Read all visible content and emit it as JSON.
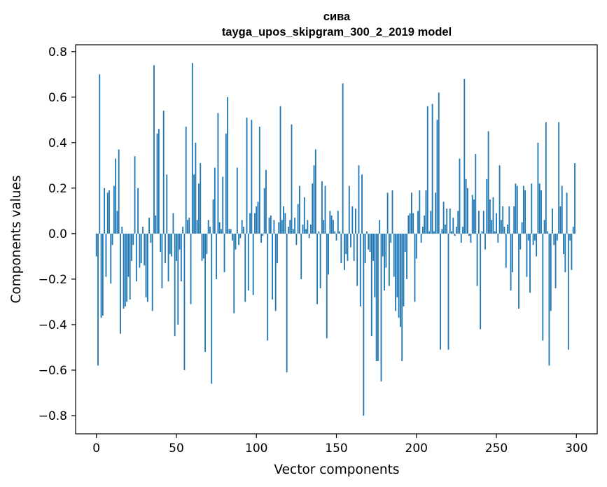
{
  "chart_data": {
    "type": "bar",
    "title": "сива",
    "subtitle": "tayga_upos_skipgram_300_2_2019 model",
    "xlabel": "Vector components",
    "ylabel": "Components values",
    "xlim": [
      -13,
      313
    ],
    "ylim": [
      -0.88,
      0.83
    ],
    "xticks": [
      0,
      50,
      100,
      150,
      200,
      250,
      300
    ],
    "yticks": [
      0.8,
      0.6,
      0.4,
      0.2,
      0.0,
      -0.2,
      -0.4,
      -0.6,
      -0.8
    ],
    "ytick_labels": [
      "0.8",
      "0.6",
      "0.4",
      "0.2",
      "0.0",
      "−0.2",
      "−0.4",
      "−0.6",
      "−0.8"
    ],
    "bar_color": "#1f77b4",
    "grid": false,
    "x": "component index 0..299",
    "values": [
      -0.1,
      -0.58,
      0.7,
      -0.37,
      -0.36,
      0.2,
      -0.19,
      0.18,
      0.19,
      -0.22,
      -0.05,
      0.21,
      0.33,
      0.1,
      0.37,
      -0.44,
      0.03,
      -0.33,
      -0.32,
      -0.3,
      -0.19,
      -0.29,
      -0.12,
      -0.05,
      0.34,
      -0.21,
      0.2,
      -0.15,
      -0.13,
      0.03,
      -0.14,
      -0.28,
      -0.3,
      0.07,
      -0.04,
      -0.34,
      0.74,
      0.08,
      0.44,
      0.46,
      -0.08,
      -0.24,
      0.54,
      -0.13,
      0.26,
      -0.21,
      -0.09,
      -0.1,
      0.09,
      -0.45,
      -0.12,
      -0.4,
      -0.07,
      -0.21,
      0.03,
      -0.6,
      0.47,
      0.06,
      0.07,
      -0.31,
      0.75,
      0.26,
      0.4,
      0.06,
      0.22,
      0.31,
      -0.12,
      -0.11,
      -0.52,
      -0.09,
      0.06,
      0.03,
      -0.66,
      0.15,
      0.29,
      -0.2,
      0.53,
      0.05,
      0.02,
      0.25,
      -0.17,
      0.44,
      0.6,
      0.02,
      0.02,
      -0.03,
      -0.35,
      -0.07,
      0.29,
      -0.05,
      -0.02,
      0.06,
      0.03,
      -0.3,
      0.51,
      -0.25,
      0.09,
      0.5,
      -0.27,
      0.09,
      0.12,
      0.14,
      0.47,
      -0.04,
      -0.01,
      0.2,
      0.28,
      -0.47,
      0.07,
      0.08,
      -0.29,
      0.06,
      -0.34,
      -0.13,
      0.05,
      0.56,
      0.06,
      0.12,
      0.09,
      -0.61,
      0.03,
      0.06,
      0.48,
      0.02,
      0.07,
      -0.05,
      0.13,
      0.21,
      -0.2,
      0.04,
      0.16,
      0.02,
      0.06,
      -0.02,
      0.04,
      0.22,
      0.3,
      0.37,
      -0.31,
      0.01,
      -0.24,
      0.23,
      0.06,
      0.21,
      -0.46,
      -0.18,
      0.1,
      0.08,
      0.06,
      0.01,
      -0.03,
      0.1,
      0.01,
      -0.13,
      0.66,
      -0.16,
      -0.09,
      -0.12,
      0.21,
      -0.06,
      0.12,
      -0.12,
      0.11,
      -0.23,
      0.3,
      -0.32,
      0.26,
      -0.8,
      -0.13,
      0.01,
      -0.07,
      -0.08,
      -0.45,
      -0.12,
      -0.28,
      -0.56,
      -0.56,
      0.06,
      -0.65,
      -0.1,
      -0.25,
      -0.15,
      0.18,
      -0.23,
      -0.04,
      0.19,
      -0.19,
      -0.34,
      -0.28,
      -0.37,
      -0.41,
      -0.56,
      -0.32,
      -0.08,
      -0.2,
      0.08,
      0.09,
      0.18,
      0.09,
      -0.3,
      -0.11,
      0.1,
      0.19,
      -0.04,
      0.03,
      0.08,
      0.19,
      0.56,
      0.01,
      0.1,
      0.57,
      0.01,
      0.18,
      0.5,
      0.62,
      -0.51,
      0.02,
      0.14,
      0.04,
      0.11,
      -0.51,
      0.11,
      0.01,
      0.07,
      -0.01,
      0.03,
      0.1,
      0.33,
      -0.04,
      0.03,
      0.68,
      0.24,
      0.2,
      -0.01,
      -0.04,
      0.17,
      0.15,
      0.35,
      -0.23,
      0.1,
      -0.42,
      0.01,
      0.1,
      -0.07,
      0.24,
      0.45,
      0.15,
      0.06,
      0.16,
      0.01,
      0.09,
      -0.04,
      0.3,
      0.06,
      0.12,
      0.03,
      -0.15,
      0.04,
      0.12,
      -0.25,
      -0.17,
      0.12,
      0.22,
      0.21,
      -0.33,
      -0.07,
      0.05,
      0.21,
      0.19,
      -0.19,
      -0.03,
      -0.26,
      0.22,
      -0.05,
      -0.03,
      -0.1,
      0.4,
      0.22,
      0.19,
      -0.47,
      0.06,
      0.49,
      0.01,
      -0.58,
      -0.34,
      0.11,
      -0.05,
      -0.24,
      -0.03,
      0.49,
      0.12,
      0.21,
      -0.09,
      -0.17,
      0.18,
      -0.51,
      -0.03,
      -0.16,
      0.03,
      0.31
    ]
  }
}
